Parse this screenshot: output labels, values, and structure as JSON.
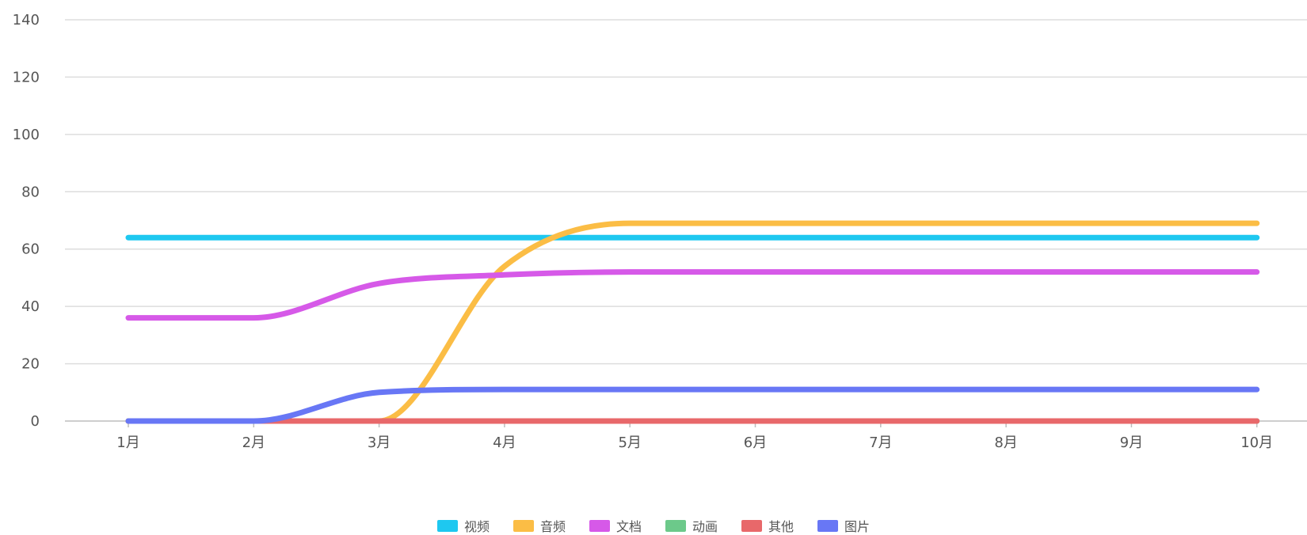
{
  "chart_data": {
    "type": "line",
    "categories": [
      "1月",
      "2月",
      "3月",
      "4月",
      "5月",
      "6月",
      "7月",
      "8月",
      "9月",
      "10月"
    ],
    "ylim": [
      0,
      140
    ],
    "yticks": [
      0,
      20,
      40,
      60,
      80,
      100,
      120,
      140
    ],
    "grid": true,
    "legend_position": "bottom",
    "series": [
      {
        "name": "视频",
        "color": "#1ec8f0",
        "values": [
          64,
          64,
          64,
          64,
          64,
          64,
          64,
          64,
          64,
          64
        ]
      },
      {
        "name": "音频",
        "color": "#fbbd45",
        "values": [
          0,
          0,
          0,
          54,
          69,
          69,
          69,
          69,
          69,
          69
        ]
      },
      {
        "name": "文档",
        "color": "#d659e8",
        "values": [
          36,
          36,
          48,
          51,
          52,
          52,
          52,
          52,
          52,
          52
        ]
      },
      {
        "name": "动画",
        "color": "#6cc98a",
        "values": [
          0,
          0,
          0,
          0,
          0,
          0,
          0,
          0,
          0,
          0
        ]
      },
      {
        "name": "其他",
        "color": "#e8686a",
        "values": [
          0,
          0,
          0,
          0,
          0,
          0,
          0,
          0,
          0,
          0
        ]
      },
      {
        "name": "图片",
        "color": "#6877f5",
        "values": [
          0,
          0,
          10,
          11,
          11,
          11,
          11,
          11,
          11,
          11
        ]
      }
    ]
  }
}
